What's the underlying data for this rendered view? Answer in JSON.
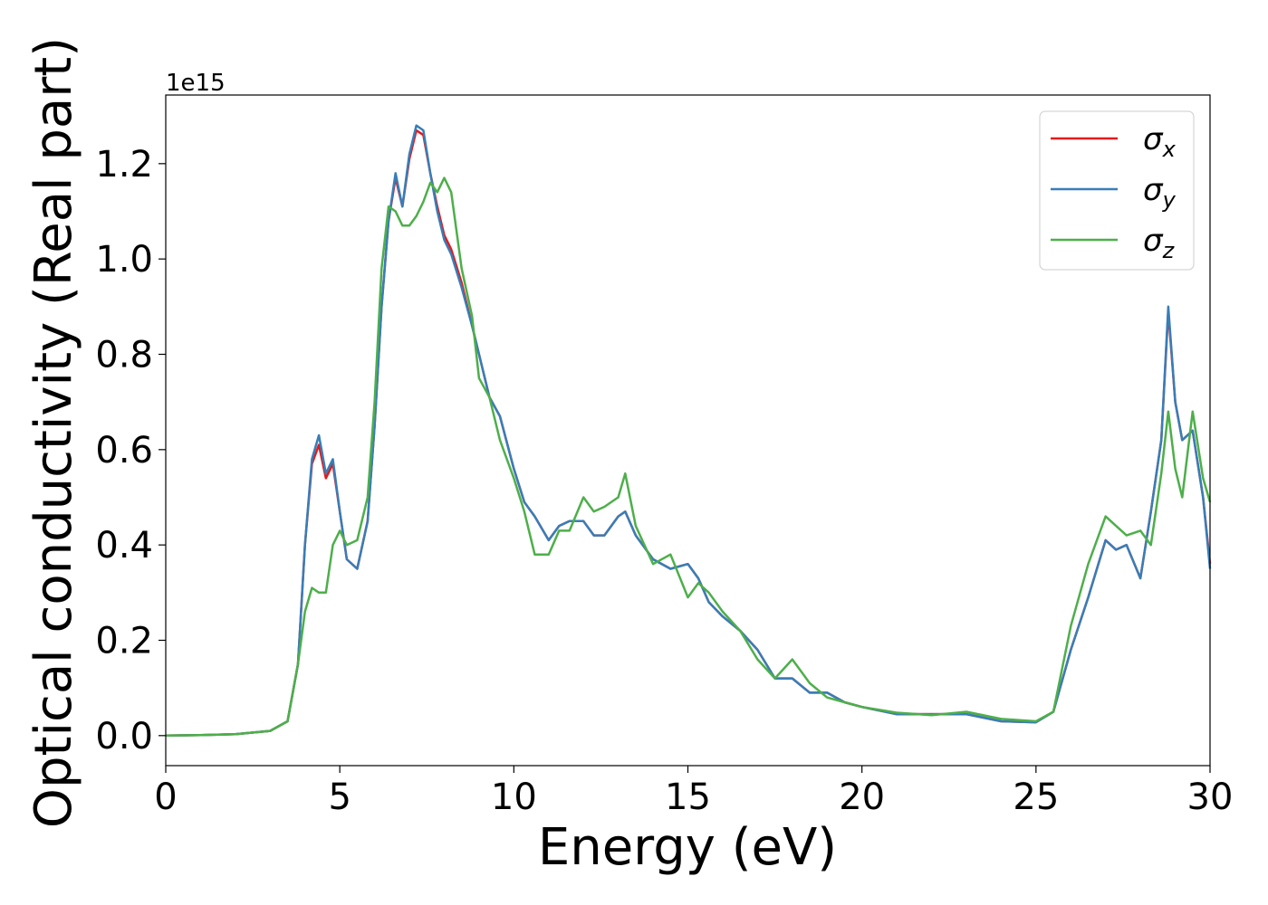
{
  "chart_data": {
    "type": "line",
    "xlabel": "Energy (eV)",
    "ylabel": "Optical conductivity (Real part)",
    "y_offset_label": "1e15",
    "legend": "upper right",
    "x": [
      0,
      1,
      2,
      3,
      3.5,
      3.8,
      4,
      4.2,
      4.4,
      4.6,
      4.8,
      5,
      5.2,
      5.5,
      5.8,
      6,
      6.2,
      6.4,
      6.6,
      6.8,
      7,
      7.2,
      7.4,
      7.6,
      7.8,
      8,
      8.2,
      8.5,
      8.8,
      9,
      9.3,
      9.6,
      10,
      10.3,
      10.6,
      11,
      11.3,
      11.6,
      12,
      12.3,
      12.6,
      13,
      13.2,
      13.5,
      14,
      14.5,
      15,
      15.3,
      15.6,
      16,
      16.5,
      17,
      17.5,
      18,
      18.5,
      19,
      19.5,
      20,
      21,
      22,
      23,
      24,
      25,
      25.5,
      26,
      26.5,
      27,
      27.3,
      27.6,
      28,
      28.3,
      28.6,
      28.8,
      29,
      29.2,
      29.5,
      29.8,
      30
    ],
    "series": [
      {
        "name": "σx",
        "color": "#e41a1c",
        "values": [
          0,
          0.001,
          0.003,
          0.01,
          0.03,
          0.15,
          0.4,
          0.57,
          0.61,
          0.54,
          0.57,
          0.47,
          0.37,
          0.35,
          0.45,
          0.65,
          0.9,
          1.08,
          1.17,
          1.11,
          1.21,
          1.27,
          1.26,
          1.18,
          1.11,
          1.05,
          1.02,
          0.95,
          0.86,
          0.8,
          0.71,
          0.67,
          0.56,
          0.49,
          0.46,
          0.41,
          0.44,
          0.45,
          0.45,
          0.42,
          0.42,
          0.46,
          0.47,
          0.42,
          0.37,
          0.35,
          0.36,
          0.33,
          0.28,
          0.25,
          0.22,
          0.18,
          0.12,
          0.12,
          0.09,
          0.09,
          0.07,
          0.06,
          0.045,
          0.045,
          0.045,
          0.03,
          0.028,
          0.05,
          0.18,
          0.29,
          0.41,
          0.39,
          0.4,
          0.33,
          0.47,
          0.62,
          0.89,
          0.7,
          0.62,
          0.64,
          0.5,
          0.36
        ]
      },
      {
        "name": "σy",
        "color": "#377eb8",
        "values": [
          0,
          0.001,
          0.003,
          0.01,
          0.03,
          0.15,
          0.4,
          0.58,
          0.63,
          0.55,
          0.58,
          0.47,
          0.37,
          0.35,
          0.45,
          0.65,
          0.9,
          1.08,
          1.18,
          1.11,
          1.22,
          1.28,
          1.27,
          1.18,
          1.1,
          1.04,
          1.01,
          0.94,
          0.86,
          0.8,
          0.71,
          0.67,
          0.56,
          0.49,
          0.46,
          0.41,
          0.44,
          0.45,
          0.45,
          0.42,
          0.42,
          0.46,
          0.47,
          0.42,
          0.37,
          0.35,
          0.36,
          0.33,
          0.28,
          0.25,
          0.22,
          0.18,
          0.12,
          0.12,
          0.09,
          0.09,
          0.07,
          0.06,
          0.045,
          0.045,
          0.045,
          0.03,
          0.028,
          0.05,
          0.18,
          0.29,
          0.41,
          0.39,
          0.4,
          0.33,
          0.47,
          0.62,
          0.9,
          0.7,
          0.62,
          0.64,
          0.5,
          0.35
        ]
      },
      {
        "name": "σz",
        "color": "#4daf4a",
        "values": [
          0,
          0.001,
          0.003,
          0.01,
          0.03,
          0.15,
          0.26,
          0.31,
          0.3,
          0.3,
          0.4,
          0.43,
          0.4,
          0.41,
          0.5,
          0.7,
          0.98,
          1.11,
          1.1,
          1.07,
          1.07,
          1.09,
          1.12,
          1.16,
          1.14,
          1.17,
          1.14,
          0.98,
          0.88,
          0.75,
          0.71,
          0.62,
          0.54,
          0.47,
          0.38,
          0.38,
          0.43,
          0.43,
          0.5,
          0.47,
          0.48,
          0.5,
          0.55,
          0.44,
          0.36,
          0.38,
          0.29,
          0.32,
          0.3,
          0.26,
          0.22,
          0.16,
          0.12,
          0.16,
          0.11,
          0.08,
          0.07,
          0.06,
          0.048,
          0.043,
          0.05,
          0.035,
          0.03,
          0.05,
          0.23,
          0.36,
          0.46,
          0.44,
          0.42,
          0.43,
          0.4,
          0.55,
          0.68,
          0.56,
          0.5,
          0.68,
          0.54,
          0.49
        ]
      }
    ],
    "xlim": [
      0,
      30
    ],
    "xticks": [
      0,
      5,
      10,
      15,
      20,
      25,
      30
    ],
    "ylim": [
      -0.063,
      1.344
    ],
    "yticks": [
      {
        "value": 0,
        "label": "0.0"
      },
      {
        "value": 0.2,
        "label": "0.2"
      },
      {
        "value": 0.4,
        "label": "0.4"
      },
      {
        "value": 0.6,
        "label": "0.6"
      },
      {
        "value": 0.8,
        "label": "0.8"
      },
      {
        "value": 1.0,
        "label": "1.0"
      },
      {
        "value": 1.2,
        "label": "1.2"
      }
    ]
  }
}
